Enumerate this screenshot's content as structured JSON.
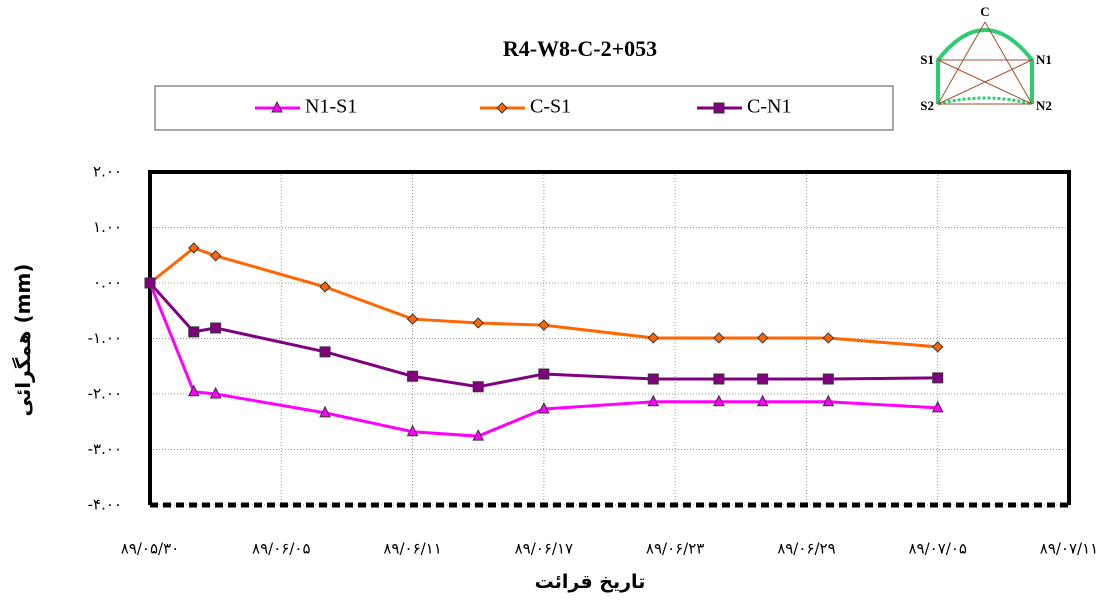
{
  "chart_data": {
    "type": "line",
    "title": "R4-W8-C-2+053",
    "x_label": "تاریخ قرائت",
    "y_label": "همگرائی (mm)",
    "inset_labels": [
      "C",
      "S1",
      "N1",
      "S2",
      "N2"
    ],
    "x": [
      0,
      2,
      3,
      8,
      12,
      15,
      18,
      23,
      26,
      28,
      31,
      36
    ],
    "xlim": [
      0,
      42
    ],
    "xticks": [
      {
        "value": 0,
        "label": "۸۹/۰۵/۳۰"
      },
      {
        "value": 6,
        "label": "۸۹/۰۶/۰۵"
      },
      {
        "value": 12,
        "label": "۸۹/۰۶/۱۱"
      },
      {
        "value": 18,
        "label": "۸۹/۰۶/۱۷"
      },
      {
        "value": 24,
        "label": "۸۹/۰۶/۲۳"
      },
      {
        "value": 30,
        "label": "۸۹/۰۶/۲۹"
      },
      {
        "value": 36,
        "label": "۸۹/۰۷/۰۵"
      },
      {
        "value": 42,
        "label": "۸۹/۰۷/۱۱"
      }
    ],
    "ylim": [
      -4,
      2
    ],
    "yticks": [
      {
        "value": 2,
        "label": "۲.۰۰"
      },
      {
        "value": 1,
        "label": "۱.۰۰"
      },
      {
        "value": 0,
        "label": "۰.۰۰"
      },
      {
        "value": -1,
        "label": "-۱.۰۰"
      },
      {
        "value": -2,
        "label": "-۲.۰۰"
      },
      {
        "value": -3,
        "label": "-۳.۰۰"
      },
      {
        "value": -4,
        "label": "-۴.۰۰"
      }
    ],
    "grid": true,
    "series": [
      {
        "name": "N1-S1",
        "color": "#ff00ff",
        "marker": "triangle",
        "values": [
          0,
          -1.96,
          -2.0,
          -2.34,
          -2.68,
          -2.76,
          -2.27,
          -2.14,
          -2.14,
          -2.14,
          -2.14,
          -2.25
        ]
      },
      {
        "name": "C-S1",
        "color": "#ff6600",
        "marker": "diamond",
        "values": [
          0,
          0.63,
          0.49,
          -0.07,
          -0.65,
          -0.72,
          -0.76,
          -0.99,
          -0.99,
          -0.99,
          -0.99,
          -1.15
        ]
      },
      {
        "name": "C-N1",
        "color": "#800080",
        "marker": "square",
        "values": [
          0,
          -0.88,
          -0.81,
          -1.24,
          -1.68,
          -1.87,
          -1.64,
          -1.73,
          -1.73,
          -1.73,
          -1.73,
          -1.71
        ]
      }
    ]
  }
}
